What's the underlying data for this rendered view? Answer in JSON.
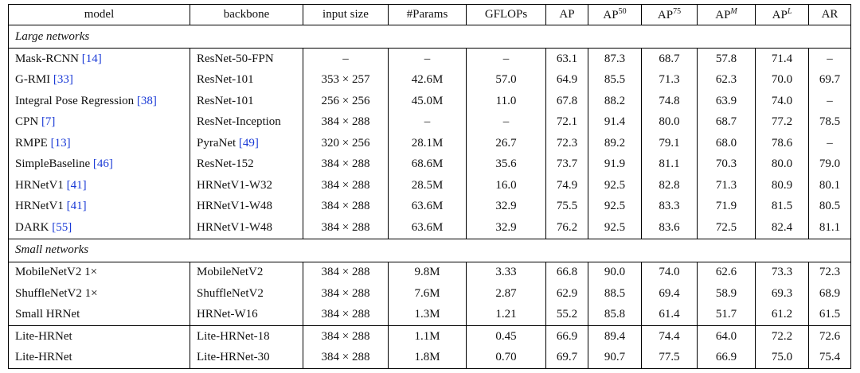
{
  "header": [
    "model",
    "backbone",
    "input size",
    "#Params",
    "GFLOPs",
    "AP",
    {
      "text": "AP",
      "sup": "50"
    },
    {
      "text": "AP",
      "sup": "75"
    },
    {
      "text": "AP",
      "sup": "M"
    },
    {
      "text": "AP",
      "sup": "L"
    },
    "AR"
  ],
  "sections": [
    {
      "title": "Large networks",
      "rows": [
        [
          {
            "name": "Mask-RCNN",
            "ref": "[14]"
          },
          "ResNet-50-FPN",
          "–",
          "–",
          "–",
          "63.1",
          "87.3",
          "68.7",
          "57.8",
          "71.4",
          "–"
        ],
        [
          {
            "name": "G-RMI",
            "ref": "[33]"
          },
          "ResNet-101",
          "353 × 257",
          "42.6M",
          "57.0",
          "64.9",
          "85.5",
          "71.3",
          "62.3",
          "70.0",
          "69.7"
        ],
        [
          {
            "name": "Integral Pose Regression",
            "ref": "[38]"
          },
          "ResNet-101",
          "256 × 256",
          "45.0M",
          "11.0",
          "67.8",
          "88.2",
          "74.8",
          "63.9",
          "74.0",
          "–"
        ],
        [
          {
            "name": "CPN",
            "ref": "[7]"
          },
          "ResNet-Inception",
          "384 × 288",
          "–",
          "–",
          "72.1",
          "91.4",
          "80.0",
          "68.7",
          "77.2",
          "78.5"
        ],
        [
          {
            "name": "RMPE",
            "ref": "[13]"
          },
          {
            "name": "PyraNet",
            "ref": "[49]"
          },
          "320 × 256",
          "28.1M",
          "26.7",
          "72.3",
          "89.2",
          "79.1",
          "68.0",
          "78.6",
          "–"
        ],
        [
          {
            "name": "SimpleBaseline",
            "ref": "[46]"
          },
          "ResNet-152",
          "384 × 288",
          "68.6M",
          "35.6",
          "73.7",
          "91.9",
          "81.1",
          "70.3",
          "80.0",
          "79.0"
        ],
        [
          {
            "name": "HRNetV1",
            "ref": "[41]"
          },
          "HRNetV1-W32",
          "384 × 288",
          "28.5M",
          "16.0",
          "74.9",
          "92.5",
          "82.8",
          "71.3",
          "80.9",
          "80.1"
        ],
        [
          {
            "name": "HRNetV1",
            "ref": "[41]"
          },
          "HRNetV1-W48",
          "384 × 288",
          "63.6M",
          "32.9",
          "75.5",
          "92.5",
          "83.3",
          "71.9",
          "81.5",
          "80.5"
        ],
        [
          {
            "name": "DARK",
            "ref": "[55]"
          },
          "HRNetV1-W48",
          "384 × 288",
          "63.6M",
          "32.9",
          "76.2",
          "92.5",
          "83.6",
          "72.5",
          "82.4",
          "81.1"
        ]
      ]
    },
    {
      "title": "Small networks",
      "rows": [
        [
          "MobileNetV2 1×",
          "MobileNetV2",
          "384 × 288",
          "9.8M",
          "3.33",
          "66.8",
          "90.0",
          "74.0",
          "62.6",
          "73.3",
          "72.3"
        ],
        [
          "ShuffleNetV2 1×",
          "ShuffleNetV2",
          "384 × 288",
          "7.6M",
          "2.87",
          "62.9",
          "88.5",
          "69.4",
          "58.9",
          "69.3",
          "68.9"
        ],
        [
          "Small HRNet",
          "HRNet-W16",
          "384 × 288",
          "1.3M",
          "1.21",
          "55.2",
          "85.8",
          "61.4",
          "51.7",
          "61.2",
          "61.5"
        ]
      ]
    },
    {
      "rows": [
        [
          "Lite-HRNet",
          "Lite-HRNet-18",
          "384 × 288",
          "1.1M",
          "0.45",
          "66.9",
          "89.4",
          "74.4",
          "64.0",
          "72.2",
          "72.6"
        ],
        [
          "Lite-HRNet",
          "Lite-HRNet-30",
          "384 × 288",
          "1.8M",
          "0.70",
          "69.7",
          "90.7",
          "77.5",
          "66.9",
          "75.0",
          "75.4"
        ]
      ]
    }
  ]
}
